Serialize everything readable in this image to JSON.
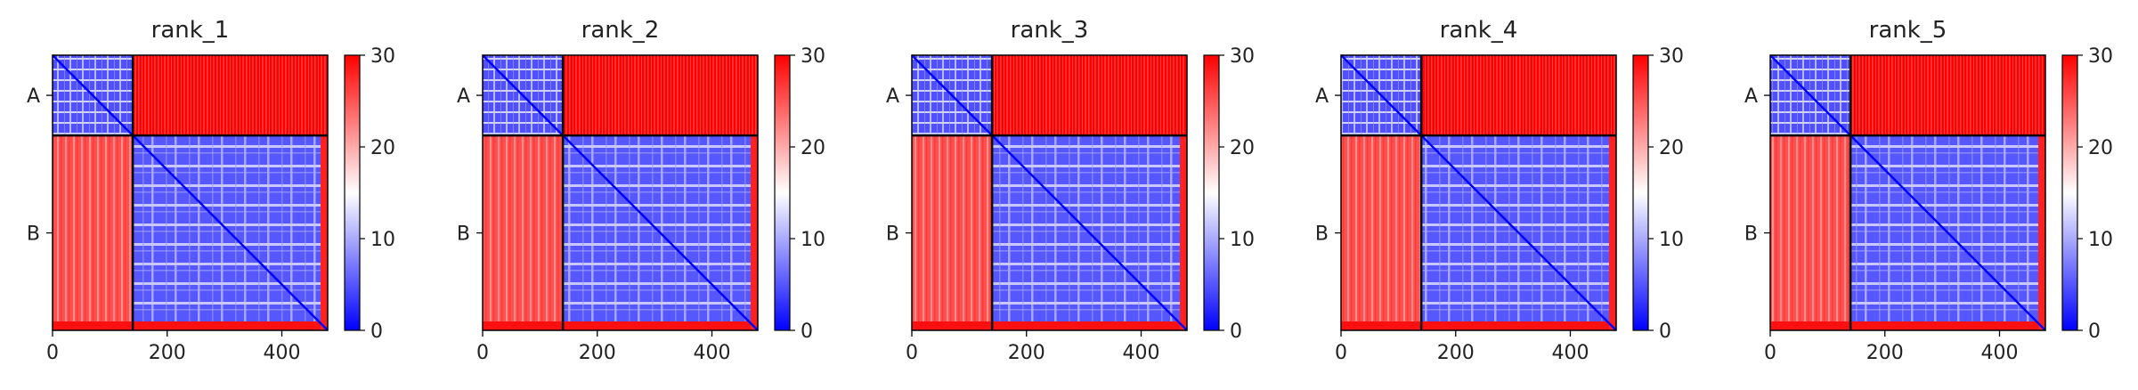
{
  "chart_data": [
    {
      "type": "heatmap",
      "title": "rank_1",
      "x_ticks": [
        0,
        200,
        400
      ],
      "y_tick_labels": [
        "A",
        "B"
      ],
      "chain_boundary": 140,
      "length": 480,
      "colorbar": {
        "min": 0,
        "max": 30,
        "ticks": [
          0,
          10,
          20,
          30
        ],
        "colors": [
          "#0000ff",
          "#ffffff",
          "#ff0000"
        ]
      },
      "blocks": {
        "intra_A": "low",
        "intra_B": "low",
        "inter_A_B": "high"
      }
    },
    {
      "type": "heatmap",
      "title": "rank_2",
      "x_ticks": [
        0,
        200,
        400
      ],
      "y_tick_labels": [
        "A",
        "B"
      ],
      "chain_boundary": 140,
      "length": 480,
      "colorbar": {
        "min": 0,
        "max": 30,
        "ticks": [
          0,
          10,
          20,
          30
        ],
        "colors": [
          "#0000ff",
          "#ffffff",
          "#ff0000"
        ]
      },
      "blocks": {
        "intra_A": "low",
        "intra_B": "low",
        "inter_A_B": "high"
      }
    },
    {
      "type": "heatmap",
      "title": "rank_3",
      "x_ticks": [
        0,
        200,
        400
      ],
      "y_tick_labels": [
        "A",
        "B"
      ],
      "chain_boundary": 140,
      "length": 480,
      "colorbar": {
        "min": 0,
        "max": 30,
        "ticks": [
          0,
          10,
          20,
          30
        ],
        "colors": [
          "#0000ff",
          "#ffffff",
          "#ff0000"
        ]
      },
      "blocks": {
        "intra_A": "low",
        "intra_B": "low",
        "inter_A_B": "high"
      }
    },
    {
      "type": "heatmap",
      "title": "rank_4",
      "x_ticks": [
        0,
        200,
        400
      ],
      "y_tick_labels": [
        "A",
        "B"
      ],
      "chain_boundary": 140,
      "length": 480,
      "colorbar": {
        "min": 0,
        "max": 30,
        "ticks": [
          0,
          10,
          20,
          30
        ],
        "colors": [
          "#0000ff",
          "#ffffff",
          "#ff0000"
        ]
      },
      "blocks": {
        "intra_A": "low",
        "intra_B": "low",
        "inter_A_B": "high"
      }
    },
    {
      "type": "heatmap",
      "title": "rank_5",
      "x_ticks": [
        0,
        200,
        400
      ],
      "y_tick_labels": [
        "A",
        "B"
      ],
      "chain_boundary": 140,
      "length": 480,
      "colorbar": {
        "min": 0,
        "max": 30,
        "ticks": [
          0,
          10,
          20,
          30
        ],
        "colors": [
          "#0000ff",
          "#ffffff",
          "#ff0000"
        ]
      },
      "blocks": {
        "intra_A": "low",
        "intra_B": "low",
        "inter_A_B": "high"
      }
    }
  ]
}
